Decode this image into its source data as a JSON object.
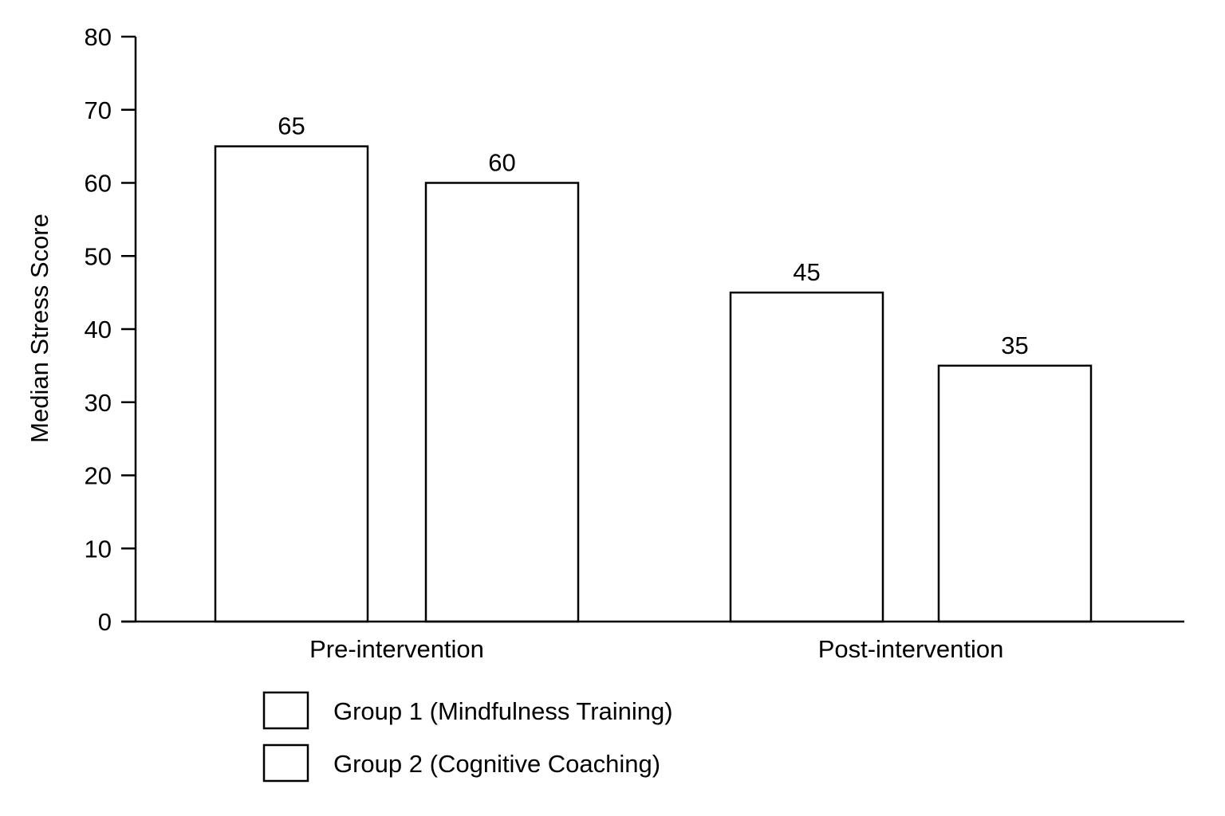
{
  "chart_data": {
    "type": "bar",
    "title": "",
    "xlabel": "",
    "ylabel": "Median Stress Score",
    "ylim": [
      0,
      80
    ],
    "yticks": [
      0,
      10,
      20,
      30,
      40,
      50,
      60,
      70,
      80
    ],
    "categories": [
      "Pre-intervention",
      "Post-intervention"
    ],
    "series": [
      {
        "name": "Group 1 (Mindfulness Training)",
        "values": [
          65,
          45
        ],
        "color": "#ffffff"
      },
      {
        "name": "Group 2 (Cognitive Coaching)",
        "values": [
          60,
          35
        ],
        "color": "#ffffff"
      }
    ],
    "data_labels": [
      [
        "65",
        "45"
      ],
      [
        "60",
        "35"
      ]
    ],
    "grid": false,
    "legend": "bottom-left"
  }
}
